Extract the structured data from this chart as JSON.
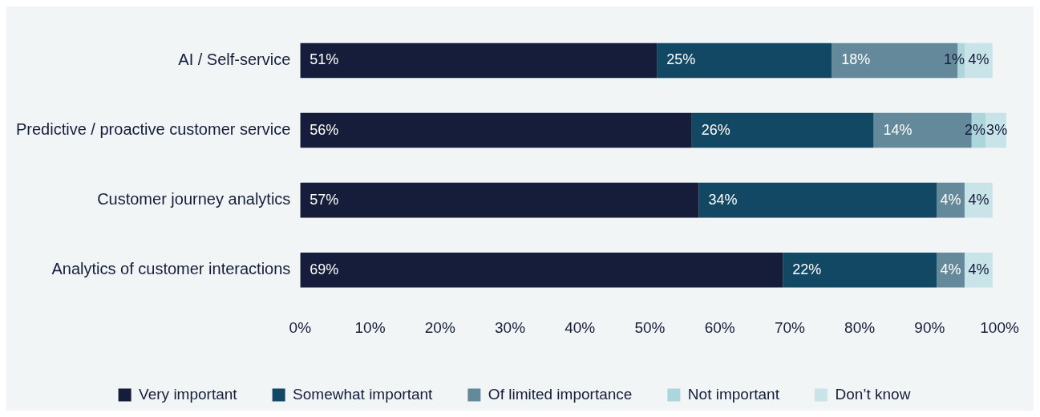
{
  "chart_data": {
    "type": "bar",
    "orientation": "horizontal",
    "stacked": true,
    "categories": [
      "AI / Self-service",
      "Predictive / proactive customer service",
      "Customer journey analytics",
      "Analytics of customer interactions"
    ],
    "series": [
      {
        "name": "Very important",
        "color": "#161d3a",
        "values": [
          51,
          56,
          57,
          69
        ],
        "value_labels": [
          "51%",
          "56%",
          "57%",
          "69%"
        ]
      },
      {
        "name": "Somewhat important",
        "color": "#124864",
        "values": [
          25,
          26,
          34,
          22
        ],
        "value_labels": [
          "25%",
          "26%",
          "34%",
          "22%"
        ]
      },
      {
        "name": "Of limited importance",
        "color": "#64899b",
        "values": [
          18,
          14,
          4,
          4
        ],
        "value_labels": [
          "18%",
          "14%",
          "4%",
          "4%"
        ]
      },
      {
        "name": "Not important",
        "color": "#acd5dc",
        "values": [
          1,
          2,
          null,
          null
        ],
        "value_labels": [
          "1%",
          "2%",
          null,
          null
        ]
      },
      {
        "name": "Don’t know",
        "color": "#c9e4e8",
        "values": [
          4,
          3,
          4,
          4
        ],
        "value_labels": [
          "4%",
          "3%",
          "4%",
          "4%"
        ]
      }
    ],
    "xlim": [
      0,
      101
    ],
    "xticks": [
      {
        "value": 0,
        "label": "0%"
      },
      {
        "value": 10,
        "label": "10%"
      },
      {
        "value": 20,
        "label": "20%"
      },
      {
        "value": 30,
        "label": "30%"
      },
      {
        "value": 40,
        "label": "40%"
      },
      {
        "value": 50,
        "label": "50%"
      },
      {
        "value": 60,
        "label": "60%"
      },
      {
        "value": 70,
        "label": "70%"
      },
      {
        "value": 80,
        "label": "80%"
      },
      {
        "value": 90,
        "label": "90%"
      },
      {
        "value": 100,
        "label": "100%"
      }
    ],
    "grid": false,
    "legend": "bottom"
  }
}
